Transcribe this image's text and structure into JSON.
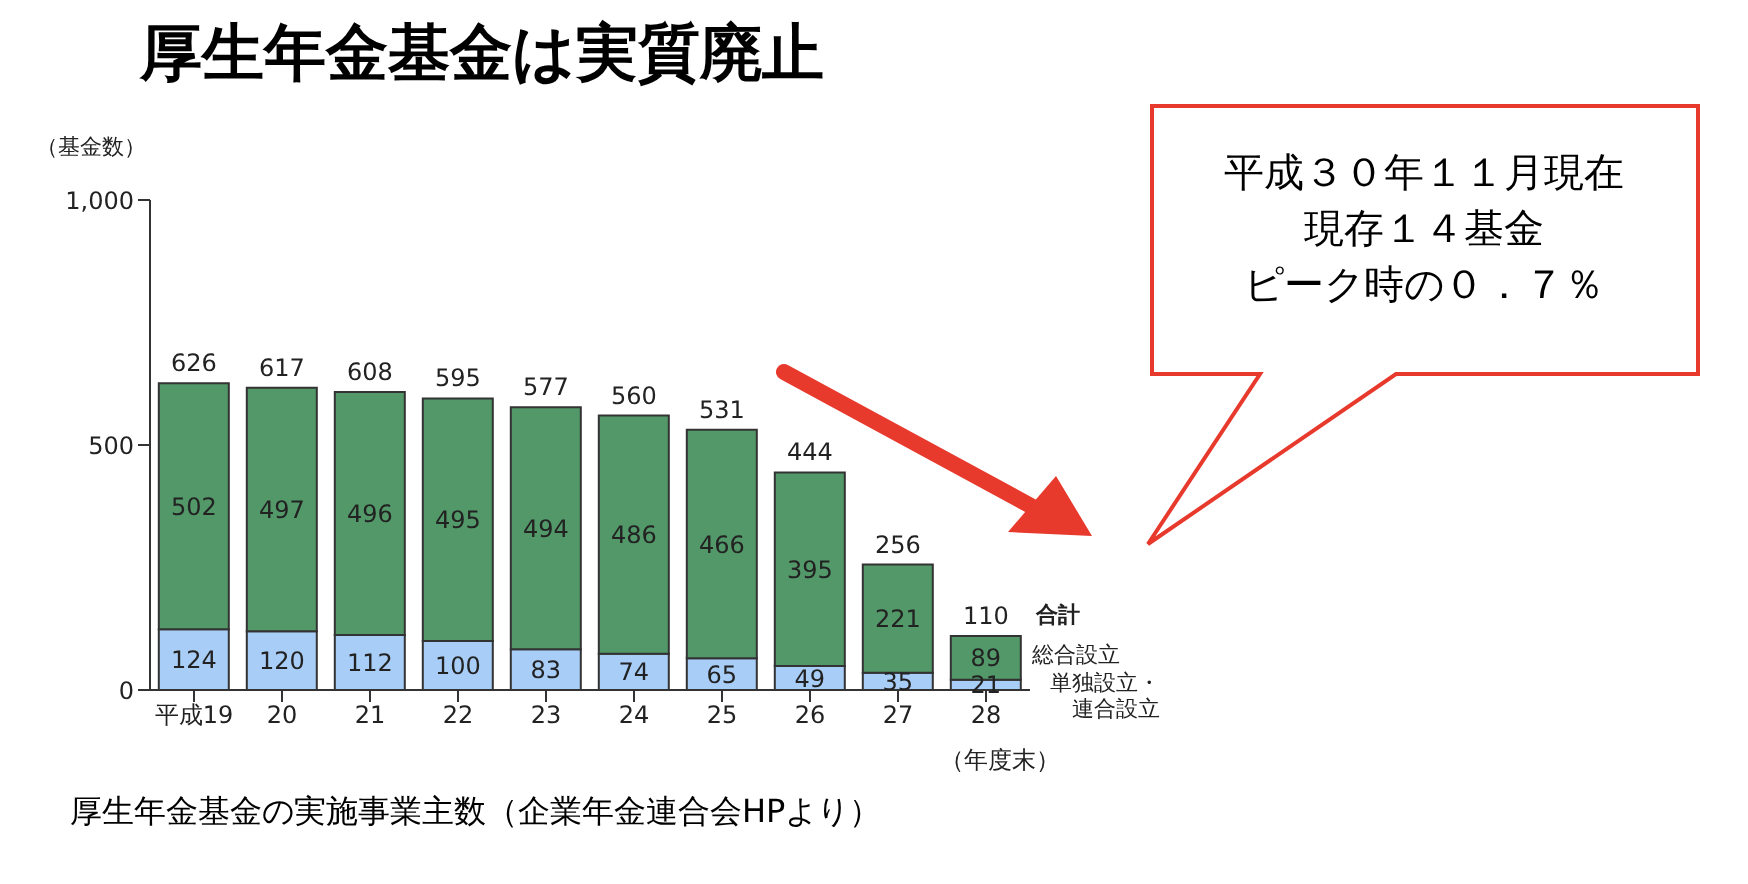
{
  "chart_data": {
    "type": "bar",
    "title": "厚生年金基金は実質廃止",
    "ylabel": "（基金数）",
    "xlabel": "（年度末）",
    "categories": [
      "平成19",
      "20",
      "21",
      "22",
      "23",
      "24",
      "25",
      "26",
      "27",
      "28"
    ],
    "stacked": true,
    "series": [
      {
        "name": "単独設立・連合設立",
        "color": "#a8cdf7",
        "values": [
          124,
          120,
          112,
          100,
          83,
          74,
          65,
          49,
          35,
          21
        ]
      },
      {
        "name": "総合設立",
        "color": "#529868",
        "values": [
          502,
          497,
          496,
          495,
          494,
          486,
          466,
          395,
          221,
          89
        ]
      }
    ],
    "totals": [
      "626",
      "617",
      "608",
      "595",
      "577",
      "560",
      "531",
      "444",
      "256",
      "110"
    ],
    "data_labels": true,
    "ylim": [
      0,
      1000
    ],
    "yticks": [
      0,
      500,
      {
        "value": 1000,
        "label": "1,000"
      }
    ],
    "grid": false,
    "legend": false,
    "annotations": [
      "厚生年金基金の実施事業主数（企業年金連合会HPより）",
      "平成３０年１１月現在",
      "現存１４基金",
      "ピーク時の０．７％",
      "合計"
    ]
  }
}
